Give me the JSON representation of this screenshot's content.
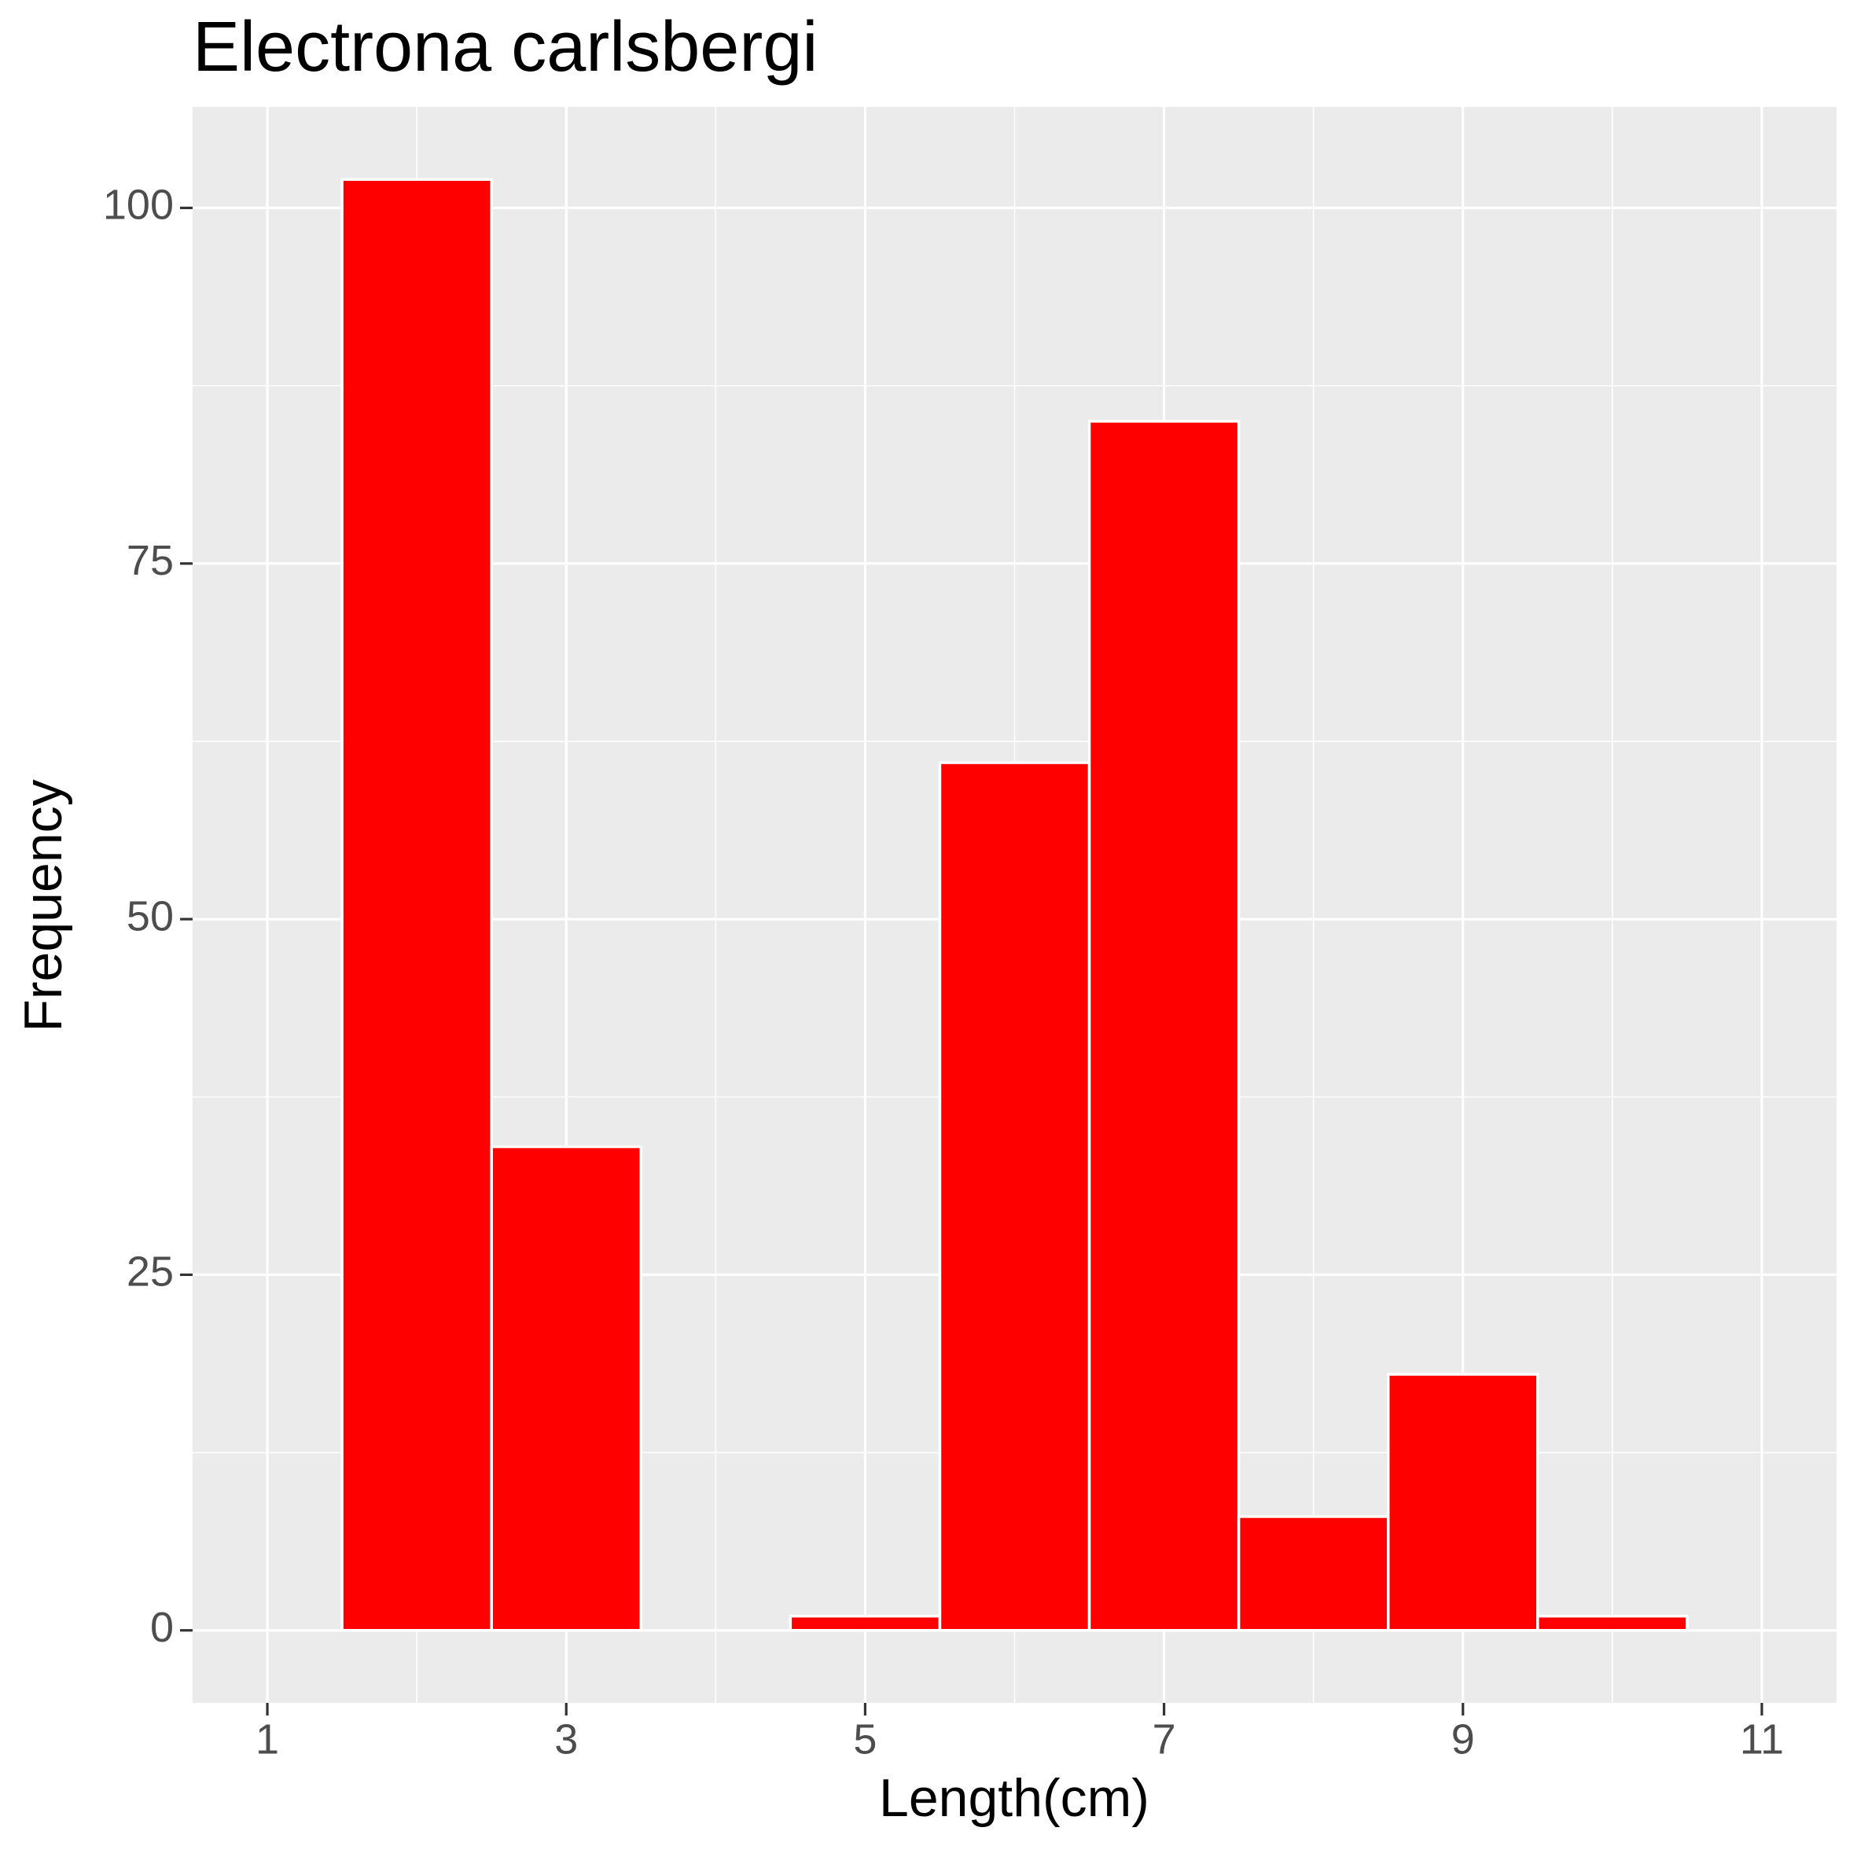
{
  "chart_data": {
    "type": "histogram",
    "title": "Electrona carlsbergi",
    "x_label": "Length(cm)",
    "y_label": "Frequency",
    "bins": [
      1.5,
      2.5,
      3.5,
      4.5,
      5.5,
      6.5,
      7.5,
      8.5,
      9.5,
      10.5
    ],
    "values": [
      102,
      34,
      0,
      1,
      61,
      85,
      8,
      18,
      1
    ],
    "color": "#ff0000",
    "xlim": [
      0.5,
      11.5
    ],
    "xticks": [
      1,
      3,
      5,
      7,
      9,
      11
    ],
    "ylim": [
      -5.1,
      107.1
    ],
    "yticks": [
      0,
      25,
      50,
      75,
      100
    ],
    "grid": true
  }
}
